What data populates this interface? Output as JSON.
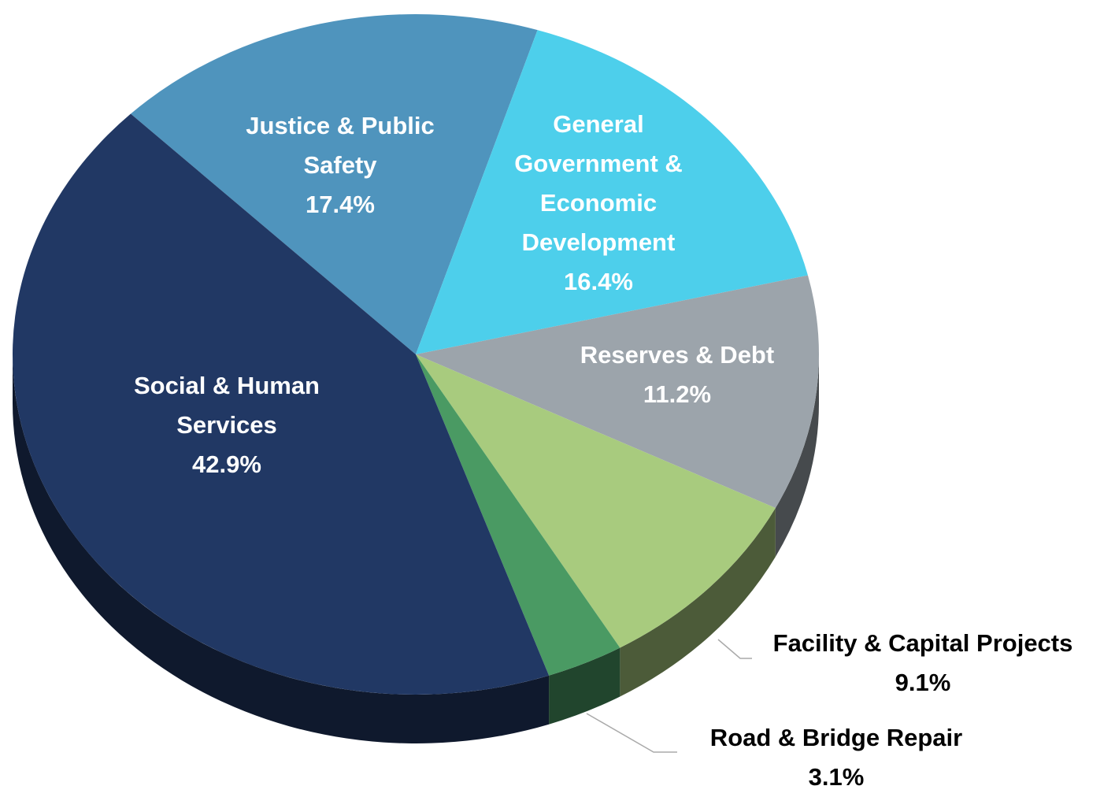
{
  "chart_data": {
    "type": "pie",
    "categories": [
      "Justice & Public Safety",
      "General Government & Economic Development",
      "Reserves & Debt",
      "Facility & Capital Projects",
      "Road & Bridge Repair",
      "Social & Human Services"
    ],
    "values": [
      17.4,
      16.4,
      11.2,
      9.1,
      3.1,
      42.9
    ],
    "value_labels": [
      "17.4%",
      "16.4%",
      "11.2%",
      "9.1%",
      "3.1%",
      "42.9%"
    ],
    "colors": [
      "#4f94bd",
      "#4dcfeb",
      "#9ca4ab",
      "#a8cb7e",
      "#4a9a63",
      "#213864"
    ]
  }
}
